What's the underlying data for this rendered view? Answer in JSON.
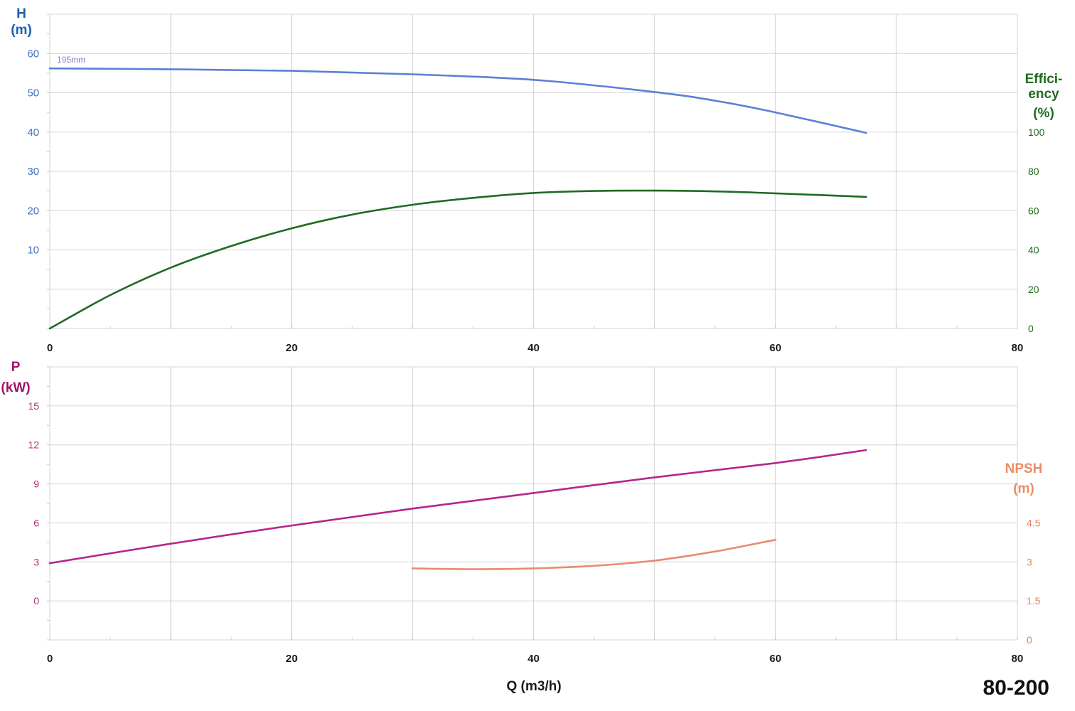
{
  "model_label": "80-200",
  "chart_data": [
    {
      "type": "line",
      "xlabel": "Q (m3/h)",
      "xlim": [
        0,
        80
      ],
      "x_ticks": [
        "0",
        "20",
        "40",
        "60",
        "80"
      ],
      "left_axis": {
        "label_lines": [
          "H",
          "(m)"
        ],
        "ylim": [
          -10,
          70
        ],
        "ticks": [
          {
            "value": 10,
            "label": "10"
          },
          {
            "value": 20,
            "label": "20"
          },
          {
            "value": 30,
            "label": "30"
          },
          {
            "value": 40,
            "label": "40"
          },
          {
            "value": 50,
            "label": "50"
          },
          {
            "value": 60,
            "label": "60"
          }
        ]
      },
      "right_axis": {
        "label_lines": [
          "Effici-",
          "ency",
          "(%)"
        ],
        "ylim": [
          0,
          160
        ],
        "ticks": [
          {
            "value": 0,
            "label": "0"
          },
          {
            "value": 20,
            "label": "20"
          },
          {
            "value": 40,
            "label": "40"
          },
          {
            "value": 60,
            "label": "60"
          },
          {
            "value": 80,
            "label": "80"
          },
          {
            "value": 100,
            "label": "100"
          }
        ]
      },
      "series": [
        {
          "name": "195mm",
          "axis": "left",
          "color": "#5b7fd6",
          "points": [
            [
              0,
              56.2
            ],
            [
              10,
              56.0
            ],
            [
              20,
              55.6
            ],
            [
              30,
              54.7
            ],
            [
              40,
              53.3
            ],
            [
              50,
              50.2
            ],
            [
              55,
              48.0
            ],
            [
              60,
              45.0
            ],
            [
              67.5,
              39.8
            ]
          ]
        },
        {
          "axis": "right",
          "color": "#1e6b23",
          "points": [
            [
              0,
              0
            ],
            [
              5,
              17
            ],
            [
              10,
              31
            ],
            [
              15,
              42
            ],
            [
              20,
              51
            ],
            [
              25,
              58
            ],
            [
              30,
              63
            ],
            [
              35,
              66.5
            ],
            [
              40,
              69
            ],
            [
              45,
              70
            ],
            [
              50,
              70.2
            ],
            [
              55,
              69.8
            ],
            [
              60,
              68.8
            ],
            [
              67.5,
              67
            ]
          ]
        }
      ]
    },
    {
      "type": "line",
      "xlabel": "Q (m3/h)",
      "xlim": [
        0,
        80
      ],
      "x_ticks": [
        "0",
        "20",
        "40",
        "60",
        "80"
      ],
      "left_axis": {
        "label_lines": [
          "P",
          "(kW)"
        ],
        "ylim": [
          -3,
          18
        ],
        "ticks": [
          {
            "value": 0,
            "label": "0"
          },
          {
            "value": 3,
            "label": "3"
          },
          {
            "value": 6,
            "label": "6"
          },
          {
            "value": 9,
            "label": "9"
          },
          {
            "value": 12,
            "label": "12"
          },
          {
            "value": 15,
            "label": "15"
          }
        ]
      },
      "right_axis": {
        "label_lines": [
          "NPSH",
          "(m)"
        ],
        "ylim": [
          0,
          10.5
        ],
        "ticks": [
          {
            "value": 0,
            "label": "0"
          },
          {
            "value": 1.5,
            "label": "1.5"
          },
          {
            "value": 3,
            "label": "3"
          },
          {
            "value": 4.5,
            "label": "4.5"
          }
        ]
      },
      "series": [
        {
          "axis": "left",
          "color": "#b5268b",
          "points": [
            [
              0,
              2.9
            ],
            [
              10,
              4.4
            ],
            [
              20,
              5.8
            ],
            [
              30,
              7.1
            ],
            [
              40,
              8.3
            ],
            [
              50,
              9.5
            ],
            [
              60,
              10.6
            ],
            [
              67.5,
              11.6
            ]
          ]
        },
        {
          "axis": "right",
          "color": "#ea8a70",
          "points": [
            [
              30,
              2.75
            ],
            [
              35,
              2.72
            ],
            [
              40,
              2.75
            ],
            [
              45,
              2.85
            ],
            [
              50,
              3.05
            ],
            [
              55,
              3.4
            ],
            [
              60,
              3.85
            ]
          ]
        }
      ]
    }
  ]
}
